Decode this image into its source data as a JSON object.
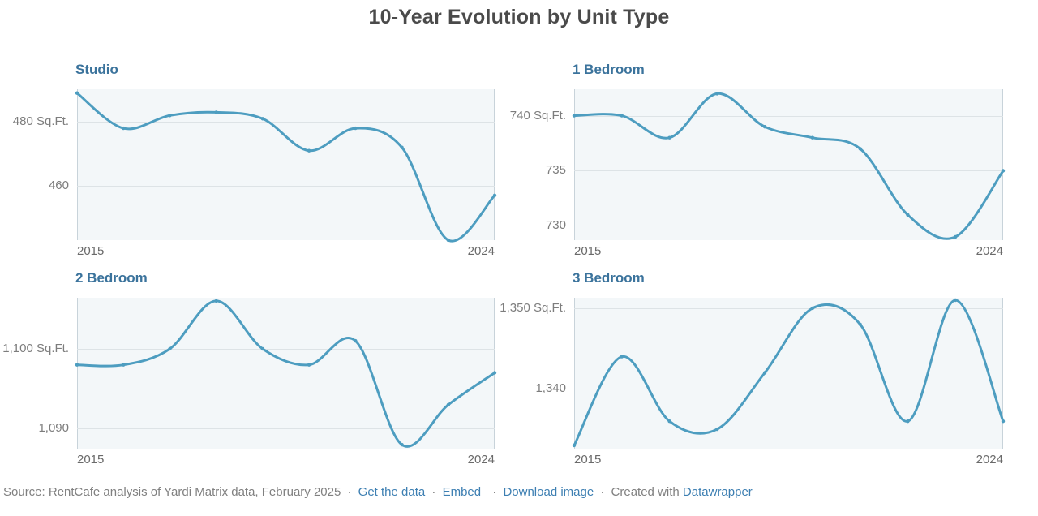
{
  "page": {
    "title": "10-Year Evolution by Unit Type"
  },
  "colors": {
    "line": "#4d9dc0",
    "panel_title": "#3b739c",
    "plot_bg": "#f3f7f9",
    "gridline": "#dde3e6",
    "plot_border": "#c8d3da",
    "main_title": "#4a4a4a",
    "y_label": "#7d7d7d",
    "x_label": "#6a6a6a",
    "footer_text": "#808080",
    "link": "#3d7fb2"
  },
  "chart_data": [
    {
      "type": "line",
      "title": "Studio",
      "unit": "Sq.Ft.",
      "x": [
        2015,
        2016,
        2017,
        2018,
        2019,
        2020,
        2021,
        2022,
        2023,
        2024
      ],
      "values": [
        489,
        478,
        482,
        483,
        481,
        471,
        478,
        472,
        443,
        457
      ],
      "ylim": [
        443.0,
        490.2
      ],
      "gridlines": [
        {
          "value": 480,
          "label": "480 Sq.Ft."
        },
        {
          "value": 460,
          "label": "460"
        }
      ],
      "x_tick_labels": [
        "2015",
        "2024"
      ],
      "grid": true,
      "legend": "none"
    },
    {
      "type": "line",
      "title": "1 Bedroom",
      "unit": "Sq.Ft.",
      "x": [
        2015,
        2016,
        2017,
        2018,
        2019,
        2020,
        2021,
        2022,
        2023,
        2024
      ],
      "values": [
        740,
        740,
        738,
        742,
        739,
        738,
        737,
        731,
        729,
        735
      ],
      "ylim": [
        728.7,
        742.4
      ],
      "gridlines": [
        {
          "value": 740,
          "label": "740 Sq.Ft."
        },
        {
          "value": 735,
          "label": "735"
        },
        {
          "value": 730,
          "label": "730"
        }
      ],
      "x_tick_labels": [
        "2015",
        "2024"
      ],
      "grid": true,
      "legend": "none"
    },
    {
      "type": "line",
      "title": "2 Bedroom",
      "unit": "Sq.Ft.",
      "x": [
        2015,
        2016,
        2017,
        2018,
        2019,
        2020,
        2021,
        2022,
        2023,
        2024
      ],
      "values": [
        1098,
        1098,
        1100,
        1106,
        1100,
        1098,
        1101,
        1088,
        1093,
        1097
      ],
      "ylim": [
        1087.5,
        1106.4
      ],
      "gridlines": [
        {
          "value": 1100,
          "label": "1,100 Sq.Ft."
        },
        {
          "value": 1090,
          "label": "1,090"
        }
      ],
      "x_tick_labels": [
        "2015",
        "2024"
      ],
      "grid": true,
      "legend": "none"
    },
    {
      "type": "line",
      "title": "3 Bedroom",
      "unit": "Sq.Ft.",
      "x": [
        2015,
        2016,
        2017,
        2018,
        2019,
        2020,
        2021,
        2022,
        2023,
        2024
      ],
      "values": [
        1333,
        1344,
        1336,
        1335,
        1342,
        1350,
        1348,
        1336,
        1351,
        1336
      ],
      "ylim": [
        1332.6,
        1351.3
      ],
      "gridlines": [
        {
          "value": 1350,
          "label": "1,350 Sq.Ft."
        },
        {
          "value": 1340,
          "label": "1,340"
        }
      ],
      "x_tick_labels": [
        "2015",
        "2024"
      ],
      "grid": true,
      "legend": "none"
    }
  ],
  "footer": {
    "source_text": "Source: RentCafe analysis of Yardi Matrix data, February 2025",
    "separator": "·",
    "links": [
      {
        "label": "Get the data"
      },
      {
        "label": "Embed"
      },
      {
        "label": "Download image"
      }
    ],
    "created_with": "Created with",
    "created_link": "Datawrapper"
  }
}
